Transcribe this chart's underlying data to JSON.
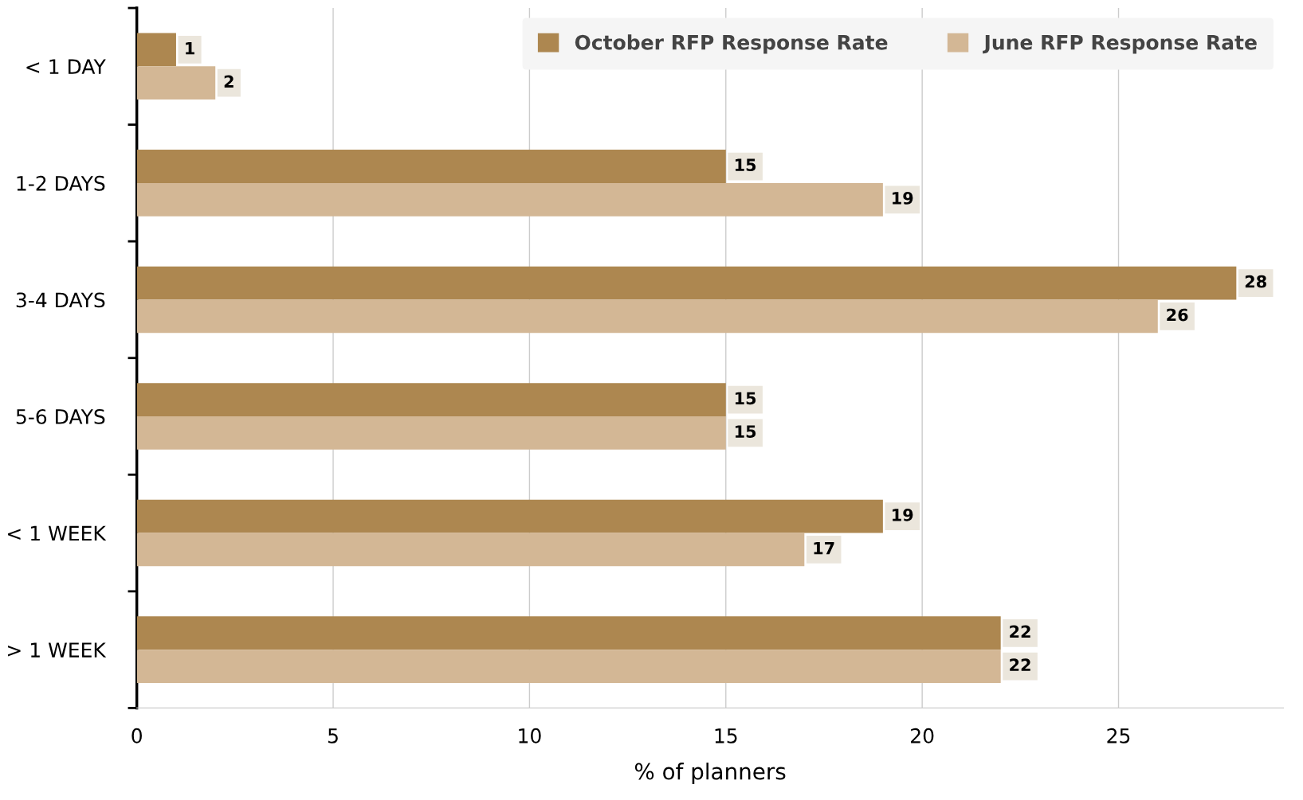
{
  "chart_data": {
    "type": "bar",
    "orientation": "horizontal",
    "xlabel": "% of planners",
    "categories": [
      "< 1 DAY",
      "1-2 DAYS",
      "3-4 DAYS",
      "5-6 DAYS",
      "< 1 WEEK",
      "> 1 WEEK"
    ],
    "series": [
      {
        "name": "October RFP Response Rate",
        "color": "#ad8750",
        "values": [
          1,
          15,
          28,
          15,
          19,
          22
        ]
      },
      {
        "name": "June RFP Response Rate",
        "color": "#d3b795",
        "values": [
          2,
          19,
          26,
          15,
          17,
          22
        ]
      }
    ],
    "xlim": [
      0,
      29.2
    ],
    "xticks": [
      0,
      5,
      10,
      15,
      20,
      25
    ],
    "grid": "x",
    "legend": "top right",
    "data_labels": true
  }
}
